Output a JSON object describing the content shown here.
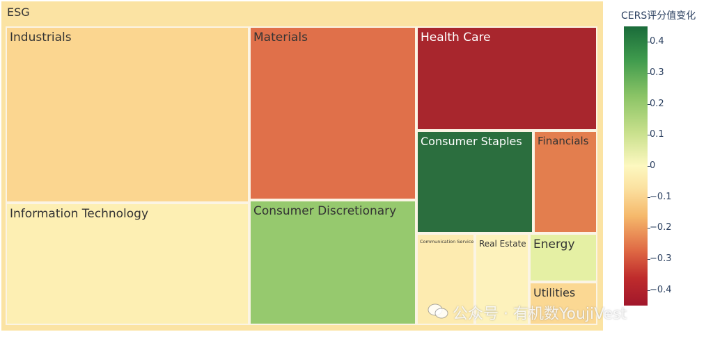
{
  "chart_data": {
    "type": "treemap",
    "root": "ESG",
    "colorbar": {
      "title": "CERS评分值变化",
      "range": [
        -0.45,
        0.45
      ],
      "ticks": [
        "0.4",
        "0.3",
        "0.2",
        "0.1",
        "0",
        "−0.1",
        "−0.2",
        "−0.3",
        "−0.4"
      ],
      "tick_values": [
        0.4,
        0.3,
        0.2,
        0.1,
        0,
        -0.1,
        -0.2,
        -0.3,
        -0.4
      ],
      "colors": {
        "max": "#1a6b3a",
        "mid": "#fdf8c0",
        "min": "#a1172b"
      }
    },
    "nodes": [
      {
        "label": "Industrials",
        "color": "#fbd690",
        "text_color": "#333333"
      },
      {
        "label": "Information Technology",
        "color": "#fdefb3",
        "text_color": "#333333"
      },
      {
        "label": "Materials",
        "color": "#e0704a",
        "text_color": "#333333"
      },
      {
        "label": "Consumer Discretionary",
        "color": "#96c96e",
        "text_color": "#333333"
      },
      {
        "label": "Health Care",
        "color": "#a8262d",
        "text_color": "#ffffff"
      },
      {
        "label": "Consumer Staples",
        "color": "#2b6e3e",
        "text_color": "#ffffff"
      },
      {
        "label": "Financials",
        "color": "#e37e4e",
        "text_color": "#333333"
      },
      {
        "label": "Communication Services",
        "color": "#fdebb0",
        "text_color": "#333333"
      },
      {
        "label": "Real Estate",
        "color": "#fdf2bc",
        "text_color": "#333333"
      },
      {
        "label": "Energy",
        "color": "#e5f0a4",
        "text_color": "#333333"
      },
      {
        "label": "Utilities",
        "color": "#fbd893",
        "text_color": "#333333"
      }
    ]
  },
  "watermark": "公众号 · 有机数YoujiVest"
}
